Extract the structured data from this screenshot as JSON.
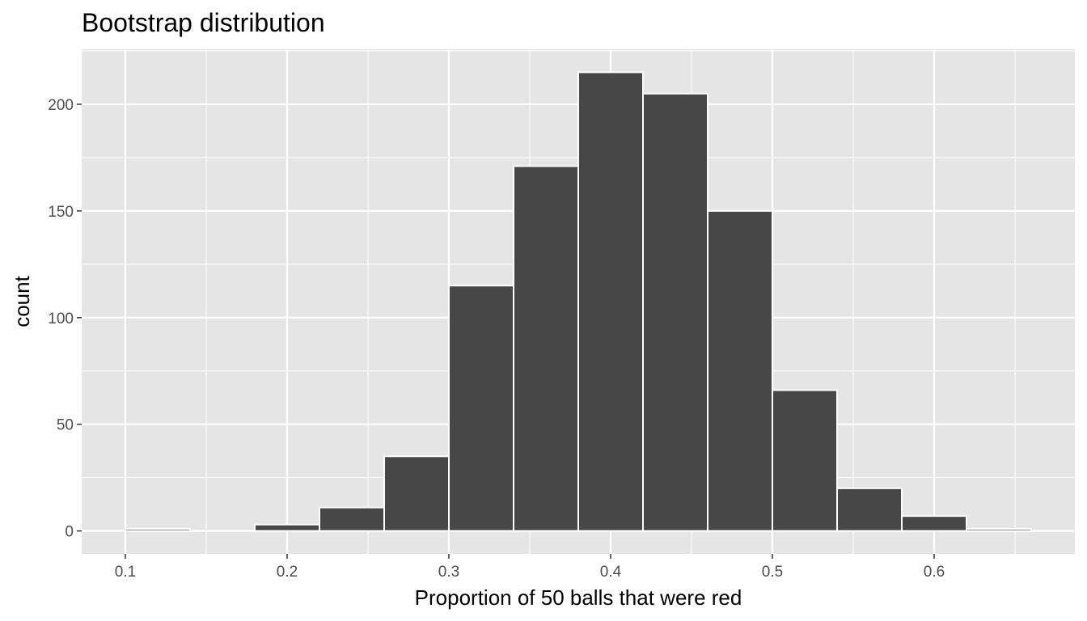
{
  "chart_data": {
    "type": "bar",
    "title": "Bootstrap distribution",
    "xlabel": "Proportion of 50 balls that were red",
    "ylabel": "count",
    "xlim": [
      0.073,
      0.687
    ],
    "ylim": [
      -10.75,
      225.75
    ],
    "x_ticks": [
      0.1,
      0.2,
      0.3,
      0.4,
      0.5,
      0.6
    ],
    "x_tick_labels": [
      "0.1",
      "0.2",
      "0.3",
      "0.4",
      "0.5",
      "0.6"
    ],
    "y_ticks": [
      0,
      50,
      100,
      150,
      200
    ],
    "y_tick_labels": [
      "0",
      "50",
      "100",
      "150",
      "200"
    ],
    "grid": true,
    "bins": [
      {
        "x0": 0.1,
        "x1": 0.14,
        "count": 1
      },
      {
        "x0": 0.14,
        "x1": 0.18,
        "count": 0
      },
      {
        "x0": 0.18,
        "x1": 0.22,
        "count": 3
      },
      {
        "x0": 0.22,
        "x1": 0.26,
        "count": 11
      },
      {
        "x0": 0.26,
        "x1": 0.3,
        "count": 35
      },
      {
        "x0": 0.3,
        "x1": 0.34,
        "count": 115
      },
      {
        "x0": 0.34,
        "x1": 0.38,
        "count": 171
      },
      {
        "x0": 0.38,
        "x1": 0.42,
        "count": 215
      },
      {
        "x0": 0.42,
        "x1": 0.46,
        "count": 205
      },
      {
        "x0": 0.46,
        "x1": 0.5,
        "count": 150
      },
      {
        "x0": 0.5,
        "x1": 0.54,
        "count": 66
      },
      {
        "x0": 0.54,
        "x1": 0.58,
        "count": 20
      },
      {
        "x0": 0.58,
        "x1": 0.62,
        "count": 7
      },
      {
        "x0": 0.62,
        "x1": 0.66,
        "count": 1
      }
    ],
    "colors": {
      "panel": "#e5e5e5",
      "grid": "#ffffff",
      "bar_fill": "#474747",
      "bar_stroke": "#ffffff",
      "tick_text": "#4d4d4d",
      "tick_mark": "#333333"
    }
  }
}
